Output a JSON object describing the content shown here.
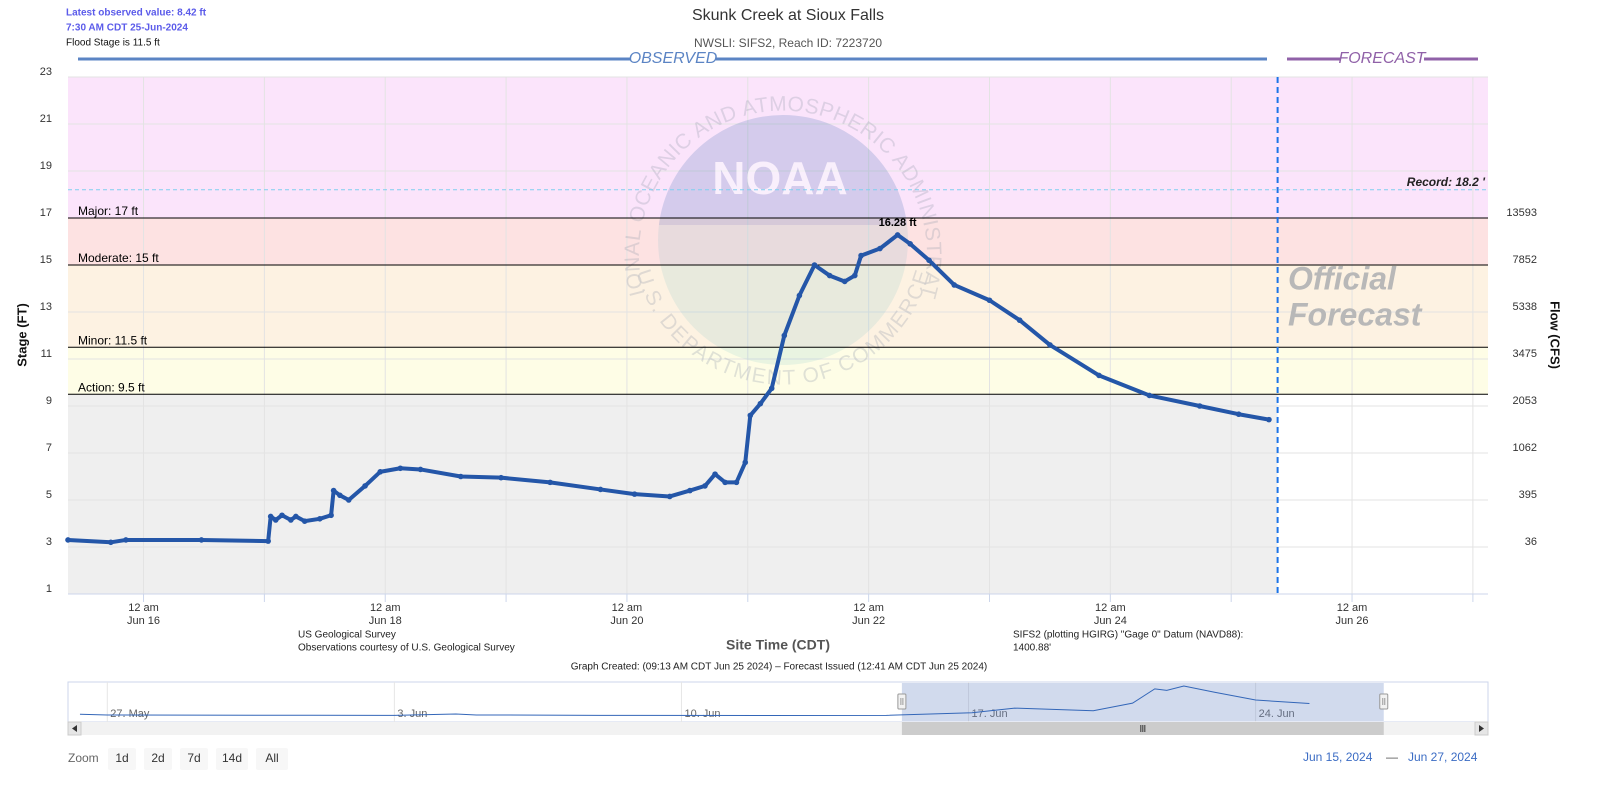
{
  "header": {
    "latest": "Latest observed value: 8.42 ft",
    "latest_time": "7:30 AM CDT 25-Jun-2024",
    "flood_stage": "Flood Stage is 11.5 ft"
  },
  "chart_data": {
    "type": "line",
    "title": "Skunk Creek at Sioux Falls",
    "subtitle": "NWSLI: SIFS2, Reach ID: 7223720",
    "observed_header": "OBSERVED",
    "forecast_header": "FORECAST",
    "forecast_watermark": [
      "Official",
      "Forecast"
    ],
    "x_label": "Site Time (CDT)",
    "y_label": "Stage (FT)",
    "y2_label": "Flow (CFS)",
    "x": [
      "2024-06-15T09:00",
      "2024-06-15T17:30",
      "2024-06-15T20:30",
      "2024-06-16T11:30",
      "2024-06-17T00:45",
      "2024-06-17T01:15",
      "2024-06-17T02:15",
      "2024-06-17T03:30",
      "2024-06-17T05:15",
      "2024-06-17T06:15",
      "2024-06-17T08:00",
      "2024-06-17T11:00",
      "2024-06-17T13:15",
      "2024-06-17T13:45",
      "2024-06-17T15:00",
      "2024-06-17T16:45",
      "2024-06-17T20:00",
      "2024-06-17T23:00",
      "2024-06-18T03:00",
      "2024-06-18T07:00",
      "2024-06-18T15:00",
      "2024-06-18T23:00",
      "2024-06-19T08:45",
      "2024-06-19T18:45",
      "2024-06-20T01:30",
      "2024-06-20T08:30",
      "2024-06-20T12:30",
      "2024-06-20T15:30",
      "2024-06-20T17:30",
      "2024-06-20T19:30",
      "2024-06-20T21:45",
      "2024-06-20T23:30",
      "2024-06-21T00:30",
      "2024-06-21T02:30",
      "2024-06-21T04:45",
      "2024-06-21T07:15",
      "2024-06-21T10:15",
      "2024-06-21T13:15",
      "2024-06-21T16:15",
      "2024-06-21T19:15",
      "2024-06-21T21:15",
      "2024-06-21T22:30",
      "2024-06-22T02:15",
      "2024-06-22T05:45",
      "2024-06-22T08:15",
      "2024-06-22T12:00",
      "2024-06-22T17:00",
      "2024-06-23T00:00",
      "2024-06-23T06:00",
      "2024-06-23T12:00",
      "2024-06-23T21:45",
      "2024-06-24T07:45",
      "2024-06-24T17:45",
      "2024-06-25T01:30",
      "2024-06-25T07:30"
    ],
    "series": [
      {
        "color": "#2456a8",
        "values": [
          3.3,
          3.2,
          3.3,
          3.3,
          3.25,
          4.3,
          4.15,
          4.35,
          4.15,
          4.3,
          4.1,
          4.2,
          4.35,
          5.4,
          5.2,
          5.0,
          5.6,
          6.2,
          6.35,
          6.3,
          6.0,
          5.95,
          5.75,
          5.45,
          5.25,
          5.15,
          5.4,
          5.6,
          6.1,
          5.75,
          5.75,
          6.6,
          8.6,
          9.1,
          9.75,
          12.0,
          13.7,
          15.0,
          14.55,
          14.3,
          14.55,
          15.4,
          15.7,
          16.28,
          15.9,
          15.2,
          14.15,
          13.5,
          12.65,
          11.6,
          10.3,
          9.45,
          9.0,
          8.65,
          8.42
        ],
        "value_labels": [
          null,
          null,
          null,
          null,
          null,
          null,
          null,
          null,
          null,
          null,
          null,
          null,
          null,
          null,
          null,
          null,
          null,
          null,
          null,
          null,
          null,
          null,
          null,
          null,
          null,
          null,
          null,
          null,
          null,
          null,
          null,
          null,
          null,
          null,
          null,
          null,
          null,
          null,
          null,
          null,
          null,
          null,
          null,
          "16.28 ft",
          null,
          null,
          null,
          null,
          null,
          null,
          null,
          null,
          null,
          null,
          null
        ]
      }
    ],
    "xlim": [
      "2024-06-15T09:00",
      "2024-06-27T03:00"
    ],
    "xticks": [
      {
        "value": "2024-06-16T00:00",
        "label": [
          "12 am",
          "Jun 16"
        ]
      },
      {
        "value": "2024-06-17T00:00",
        "label": null
      },
      {
        "value": "2024-06-18T00:00",
        "label": [
          "12 am",
          "Jun 18"
        ]
      },
      {
        "value": "2024-06-19T00:00",
        "label": null
      },
      {
        "value": "2024-06-20T00:00",
        "label": [
          "12 am",
          "Jun 20"
        ]
      },
      {
        "value": "2024-06-21T00:00",
        "label": null
      },
      {
        "value": "2024-06-22T00:00",
        "label": [
          "12 am",
          "Jun 22"
        ]
      },
      {
        "value": "2024-06-23T00:00",
        "label": null
      },
      {
        "value": "2024-06-24T00:00",
        "label": [
          "12 am",
          "Jun 24"
        ]
      },
      {
        "value": "2024-06-25T00:00",
        "label": null
      },
      {
        "value": "2024-06-26T00:00",
        "label": [
          "12 am",
          "Jun 26"
        ]
      },
      {
        "value": "2024-06-27T00:00",
        "label": null
      }
    ],
    "ylim": [
      1,
      23
    ],
    "yticks": [
      1,
      3,
      5,
      7,
      9,
      11,
      13,
      15,
      17,
      19,
      21,
      23
    ],
    "y2ticks": [
      36,
      395,
      1062,
      2053,
      3475,
      5338,
      7852,
      13593
    ],
    "y2tick_stages": [
      3,
      5,
      7,
      9,
      11,
      13,
      15,
      17
    ],
    "grid": true,
    "normal_color": "#efefef",
    "flood_levels": [
      {
        "value": 17,
        "label": "Major: 17 ft",
        "color": "#fbe4fb"
      },
      {
        "value": 15,
        "label": "Moderate: 15 ft",
        "color": "#fde2e2"
      },
      {
        "value": 11.5,
        "label": "Minor: 11.5 ft",
        "color": "#fdf2e2"
      },
      {
        "value": 9.5,
        "label": "Action: 9.5 ft",
        "color": "#fefde6"
      }
    ],
    "record": {
      "value": 18.2,
      "label": "Record: 18.2 '"
    },
    "forecast_divider": "2024-06-25T09:13"
  },
  "watermark": {
    "logo": "NOAA",
    "ring_top": "NATIONAL OCEANIC AND ATMOSPHERIC ADMINISTRATION",
    "ring_bottom": "U.S. DEPARTMENT OF COMMERCE"
  },
  "footer": {
    "source": "US Geological Survey",
    "courtesy": "Observations courtesy of U.S. Geological Survey",
    "datum": [
      "SIFS2 (plotting HGIRG) \"Gage 0\" Datum (NAVD88):",
      "1400.88'"
    ],
    "created": "Graph Created: (09:13 AM CDT Jun 25 2024) – Forecast Issued (12:41 AM CDT Jun 25 2024)"
  },
  "navigator": {
    "xlim": [
      "2024-05-26T01:00",
      "2024-06-29T16:00"
    ],
    "xticks": [
      {
        "value": "2024-05-27T00:00",
        "label": "27. May"
      },
      {
        "value": "2024-06-03T00:00",
        "label": "3. Jun"
      },
      {
        "value": "2024-06-10T00:00",
        "label": "10. Jun"
      },
      {
        "value": "2024-06-17T00:00",
        "label": "17. Jun"
      },
      {
        "value": "2024-06-24T00:00",
        "label": "24. Jun"
      }
    ],
    "x": [
      "2024-05-26T08:00",
      "2024-05-27T00:00",
      "2024-05-29T00:00",
      "2024-06-01T00:00",
      "2024-06-03T00:00",
      "2024-06-04T12:00",
      "2024-06-05T00:00",
      "2024-06-08T00:00",
      "2024-06-12T00:00",
      "2024-06-15T00:00",
      "2024-06-17T02:00",
      "2024-06-18T03:00",
      "2024-06-20T01:00",
      "2024-06-21T00:00",
      "2024-06-21T13:00",
      "2024-06-21T20:00",
      "2024-06-22T06:00",
      "2024-06-23T00:00",
      "2024-06-24T00:00",
      "2024-06-25T07:30"
    ],
    "values": [
      3.6,
      3.3,
      3.2,
      3.15,
      3.1,
      3.7,
      3.3,
      3.1,
      3.05,
      3.1,
      4.3,
      6.35,
      5.2,
      8.6,
      15.0,
      14.3,
      16.28,
      13.5,
      10.0,
      8.42
    ]
  },
  "range_selector": {
    "zoom_label": "Zoom",
    "buttons": [
      "1d",
      "2d",
      "7d",
      "14d",
      "All"
    ],
    "from": "Jun 15, 2024",
    "separator": "—",
    "to": "Jun 27, 2024"
  }
}
